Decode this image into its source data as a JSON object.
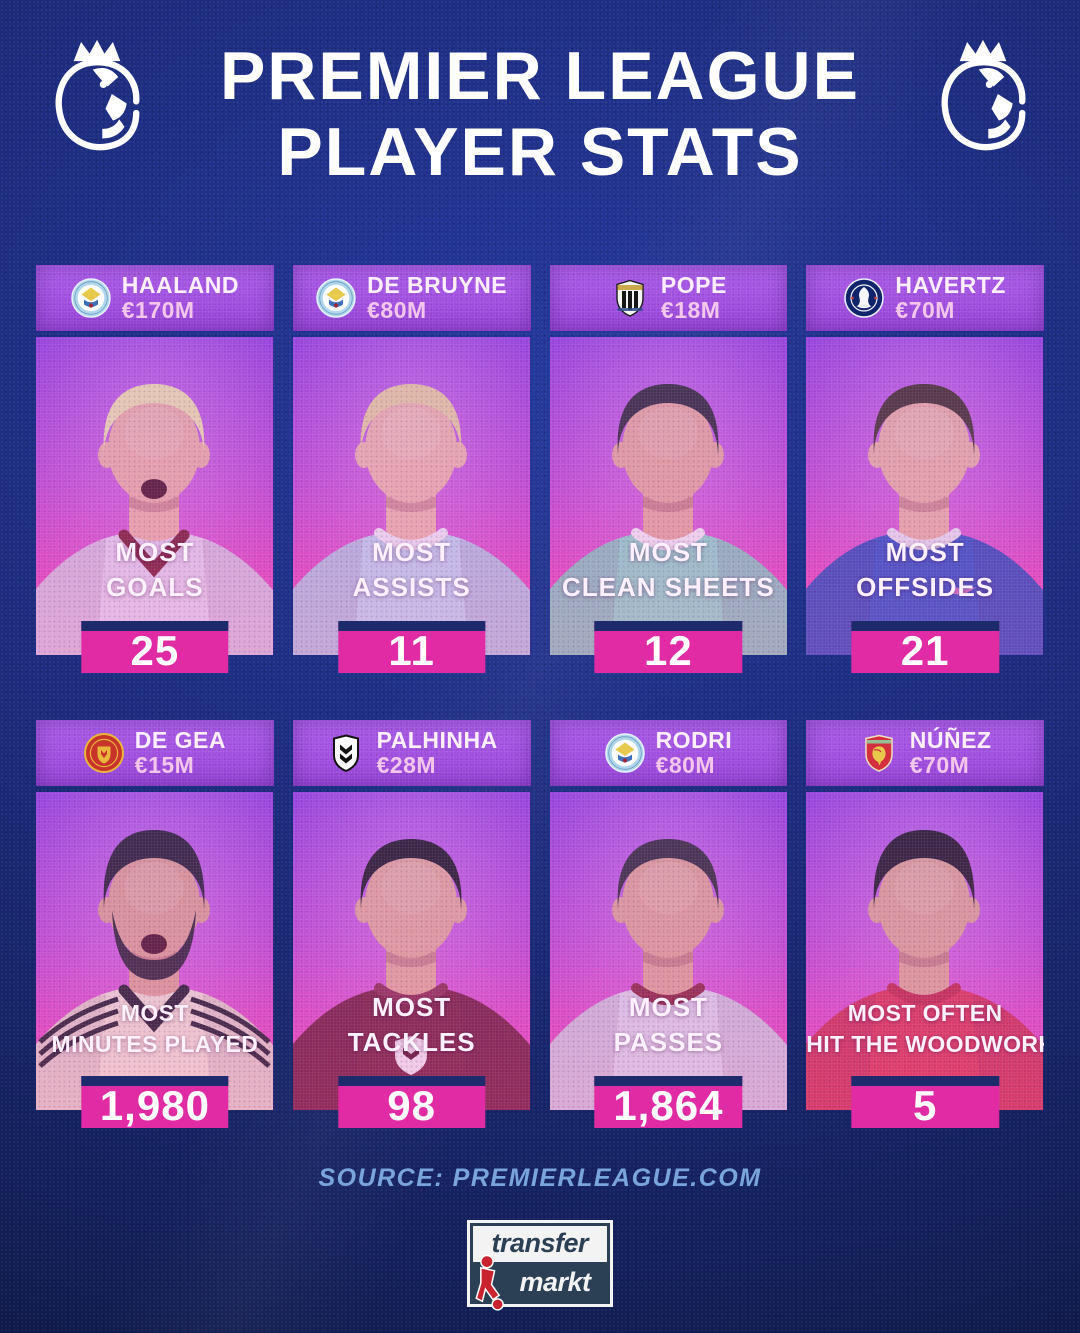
{
  "title": {
    "line1": "PREMIER LEAGUE",
    "line2": "PLAYER STATS"
  },
  "icons": {
    "header_left": "premier-league-lion",
    "header_right": "premier-league-lion"
  },
  "source": "SOURCE: PREMIERLEAGUE.COM",
  "logo": {
    "top": "transfer",
    "bottom": "markt"
  },
  "colors": {
    "background_navy": "#1c2b7c",
    "card_header_purple": "#a24fe0",
    "photo_gradient_top": "#9643dc",
    "photo_gradient_bottom": "#f75cb6",
    "stat_box_pink": "#e02ba4",
    "border_navy": "#1d2a6b",
    "source_text_blue": "#79a5dc",
    "transfermarkt_navy": "#2b3f55",
    "transfermarkt_red": "#c8232e"
  },
  "cards": [
    {
      "player": "HAALAND",
      "value": "€170M",
      "club": "manchester-city",
      "stat_line1": "MOST",
      "stat_line2": "GOALS",
      "stat_value": "25",
      "kit": {
        "jersey": "#e4d4ee",
        "trim": "#7b2336",
        "hair": "#f2e2ae",
        "skin": "#edb3a6",
        "collar": "v",
        "scream": true
      }
    },
    {
      "player": "DE BRUYNE",
      "value": "€80M",
      "club": "manchester-city",
      "stat_line1": "MOST",
      "stat_line2": "ASSISTS",
      "stat_value": "11",
      "kit": {
        "jersey": "#bed6f0",
        "trim": "#f0ecf6",
        "hair": "#ecd0a0",
        "skin": "#efb9ab",
        "collar": "crew"
      }
    },
    {
      "player": "POPE",
      "value": "€18M",
      "club": "newcastle-united",
      "stat_line1": "MOST",
      "stat_line2": "CLEAN SHEETS",
      "stat_value": "12",
      "kit": {
        "jersey": "#8fd8ca",
        "trim": "#f4f1f6",
        "hair": "#352f3a",
        "skin": "#e7ab9c",
        "collar": "crew"
      }
    },
    {
      "player": "HAVERTZ",
      "value": "€70M",
      "club": "chelsea",
      "stat_line1": "MOST",
      "stat_line2": "OFFSIDES",
      "stat_value": "21",
      "kit": {
        "jersey": "#3156c6",
        "trim": "#e9e6f2",
        "hair": "#47362f",
        "skin": "#eab4a4",
        "collar": "crew",
        "chest": "swoosh"
      }
    },
    {
      "player": "DE GEA",
      "value": "€15M",
      "club": "manchester-united",
      "stat_line1": "MOST",
      "stat_line2": "MINUTES PLAYED",
      "stat_value": "1,980",
      "kit": {
        "jersey": "#f0e2d2",
        "trim": "#23222e",
        "hair": "#2c2532",
        "skin": "#dfa393",
        "collar": "v",
        "beard": true,
        "scream": true,
        "stripes": true,
        "quiff": true
      }
    },
    {
      "player": "PALHINHA",
      "value": "€28M",
      "club": "fulham",
      "stat_line1": "MOST",
      "stat_line2": "TACKLES",
      "stat_value": "98",
      "kit": {
        "jersey": "#77243e",
        "trim": "#8d3350",
        "hair": "#241f26",
        "skin": "#e5ab99",
        "collar": "crew",
        "chest": "shield"
      }
    },
    {
      "player": "RODRI",
      "value": "€80M",
      "club": "manchester-city",
      "stat_line1": "MOST",
      "stat_line2": "PASSES",
      "stat_value": "1,864",
      "kit": {
        "jersey": "#ddd8ea",
        "trim": "#8c2c3e",
        "hair": "#38313a",
        "skin": "#e2a795",
        "collar": "crew"
      }
    },
    {
      "player": "NÚÑEZ",
      "value": "€70M",
      "club": "liverpool",
      "stat_line1": "MOST OFTEN",
      "stat_line2": "HIT THE WOODWORK",
      "stat_value": "5",
      "kit": {
        "jersey": "#da3a55",
        "trim": "#c12f48",
        "hair": "#261f27",
        "skin": "#e0a894",
        "collar": "crew",
        "quiff": true
      }
    }
  ]
}
